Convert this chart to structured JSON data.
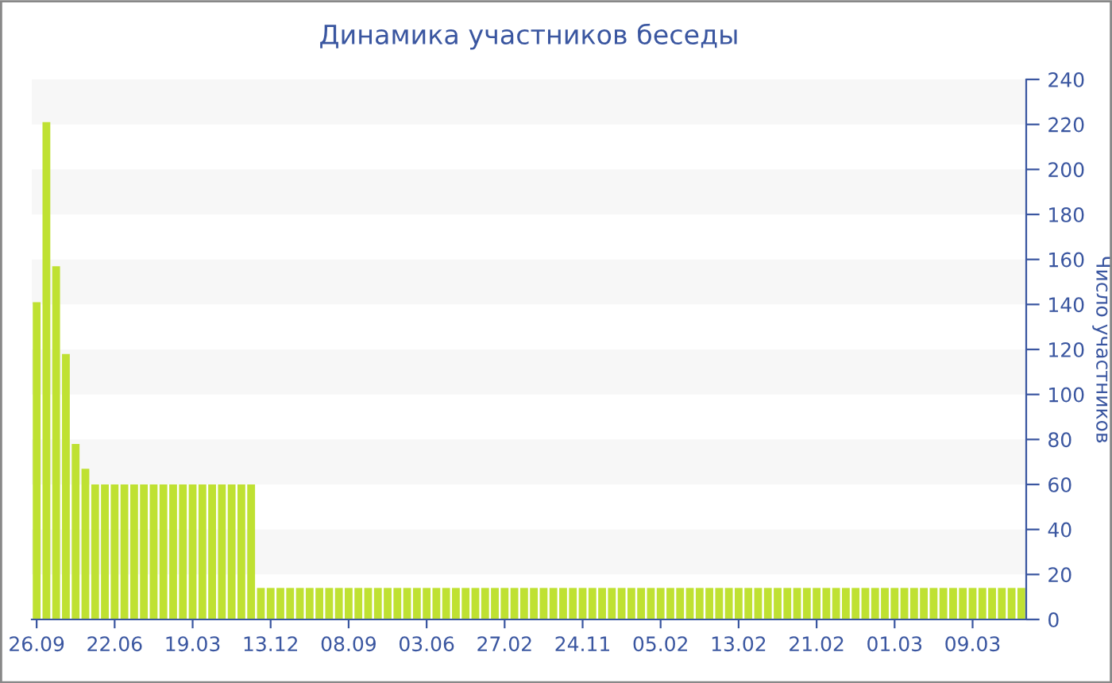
{
  "chart_data": {
    "type": "bar",
    "title": "Динамика участников беседы",
    "ylabel": "Число участников",
    "categories": [
      "26.09",
      null,
      null,
      null,
      null,
      null,
      null,
      null,
      "22.06",
      null,
      null,
      null,
      null,
      null,
      null,
      null,
      "19.03",
      null,
      null,
      null,
      null,
      null,
      null,
      null,
      "13.12",
      null,
      null,
      null,
      null,
      null,
      null,
      null,
      "08.09",
      null,
      null,
      null,
      null,
      null,
      null,
      null,
      "03.06",
      null,
      null,
      null,
      null,
      null,
      null,
      null,
      "27.02",
      null,
      null,
      null,
      null,
      null,
      null,
      null,
      "24.11",
      null,
      null,
      null,
      null,
      null,
      null,
      null,
      "05.02",
      null,
      null,
      null,
      null,
      null,
      null,
      null,
      "13.02",
      null,
      null,
      null,
      null,
      null,
      null,
      null,
      "21.02",
      null,
      null,
      null,
      null,
      null,
      null,
      null,
      "01.03",
      null,
      null,
      null,
      null,
      null,
      null,
      null,
      "09.03",
      null,
      null,
      null,
      null,
      null
    ],
    "values": [
      141,
      221,
      157,
      118,
      78,
      67,
      60,
      60,
      60,
      60,
      60,
      60,
      60,
      60,
      60,
      60,
      60,
      60,
      60,
      60,
      60,
      60,
      60,
      14,
      14,
      14,
      14,
      14,
      14,
      14,
      14,
      14,
      14,
      14,
      14,
      14,
      14,
      14,
      14,
      14,
      14,
      14,
      14,
      14,
      14,
      14,
      14,
      14,
      14,
      14,
      14,
      14,
      14,
      14,
      14,
      14,
      14,
      14,
      14,
      14,
      14,
      14,
      14,
      14,
      14,
      14,
      14,
      14,
      14,
      14,
      14,
      14,
      14,
      14,
      14,
      14,
      14,
      14,
      14,
      14,
      14,
      14,
      14,
      14,
      14,
      14,
      14,
      14,
      14,
      14,
      14,
      14,
      14,
      14,
      14,
      14,
      14,
      14,
      14,
      14,
      14,
      14
    ],
    "color": "#bfe132",
    "ylim": [
      0,
      240
    ],
    "yticks": [
      0,
      20,
      40,
      60,
      80,
      100,
      120,
      140,
      160,
      180,
      200,
      220,
      240
    ],
    "legend": false,
    "bands": [
      {
        "axis": "y",
        "from": 20,
        "to": 40,
        "color": "#f7f7f7"
      },
      {
        "axis": "y",
        "from": 60,
        "to": 80,
        "color": "#f7f7f7"
      },
      {
        "axis": "y",
        "from": 100,
        "to": 120,
        "color": "#f7f7f7"
      },
      {
        "axis": "y",
        "from": 140,
        "to": 160,
        "color": "#f7f7f7"
      },
      {
        "axis": "y",
        "from": 180,
        "to": 200,
        "color": "#f7f7f7"
      },
      {
        "axis": "y",
        "from": 220,
        "to": 240,
        "color": "#f7f7f7"
      }
    ]
  }
}
